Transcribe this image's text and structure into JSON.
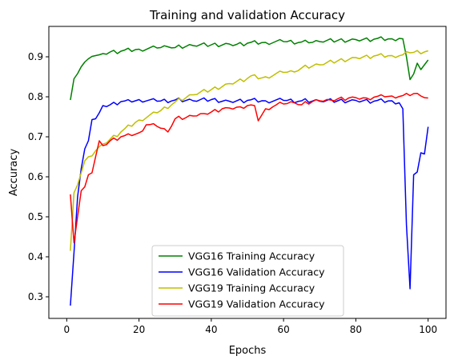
{
  "chart_data": {
    "type": "line",
    "title": "Training and validation Accuracy",
    "xlabel": "Epochs",
    "ylabel": "Accuracy",
    "xlim": [
      -4.95,
      104.95
    ],
    "ylim": [
      0.246,
      0.976
    ],
    "x_ticks": [
      0,
      20,
      40,
      60,
      80,
      100
    ],
    "y_ticks": [
      0.3,
      0.4,
      0.5,
      0.6,
      0.7,
      0.8,
      0.9
    ],
    "grid": false,
    "legend_position": "lower-center",
    "epochs_range": [
      1,
      100
    ],
    "series": [
      {
        "name": "VGG16 Training Accuracy",
        "color": "#008000",
        "anchors": [
          [
            1,
            0.792
          ],
          [
            2,
            0.845
          ],
          [
            3,
            0.858
          ],
          [
            4,
            0.875
          ],
          [
            5,
            0.887
          ],
          [
            6,
            0.895
          ],
          [
            7,
            0.901
          ],
          [
            8,
            0.903
          ],
          [
            9,
            0.905
          ],
          [
            10,
            0.908
          ],
          [
            12,
            0.912
          ],
          [
            15,
            0.914
          ],
          [
            20,
            0.919
          ],
          [
            25,
            0.922
          ],
          [
            28,
            0.925
          ],
          [
            30,
            0.923
          ],
          [
            35,
            0.928
          ],
          [
            40,
            0.93
          ],
          [
            45,
            0.932
          ],
          [
            47,
            0.931
          ],
          [
            50,
            0.934
          ],
          [
            55,
            0.936
          ],
          [
            60,
            0.938
          ],
          [
            65,
            0.937
          ],
          [
            67,
            0.935
          ],
          [
            70,
            0.938
          ],
          [
            75,
            0.941
          ],
          [
            80,
            0.943
          ],
          [
            85,
            0.944
          ],
          [
            90,
            0.945
          ],
          [
            92,
            0.946
          ],
          [
            93,
            0.945
          ],
          [
            94,
            0.9
          ],
          [
            95,
            0.843
          ],
          [
            96,
            0.857
          ],
          [
            97,
            0.884
          ],
          [
            98,
            0.868
          ],
          [
            99,
            0.88
          ],
          [
            100,
            0.892
          ]
        ]
      },
      {
        "name": "VGG16 Validation Accuracy",
        "color": "#0000ff",
        "anchors": [
          [
            1,
            0.278
          ],
          [
            2,
            0.41
          ],
          [
            3,
            0.55
          ],
          [
            4,
            0.62
          ],
          [
            5,
            0.67
          ],
          [
            6,
            0.69
          ],
          [
            7,
            0.743
          ],
          [
            8,
            0.745
          ],
          [
            9,
            0.76
          ],
          [
            10,
            0.778
          ],
          [
            12,
            0.78
          ],
          [
            15,
            0.788
          ],
          [
            18,
            0.787
          ],
          [
            20,
            0.793
          ],
          [
            25,
            0.789
          ],
          [
            30,
            0.792
          ],
          [
            35,
            0.79
          ],
          [
            40,
            0.793
          ],
          [
            45,
            0.789
          ],
          [
            50,
            0.791
          ],
          [
            55,
            0.79
          ],
          [
            60,
            0.791
          ],
          [
            65,
            0.79
          ],
          [
            70,
            0.789
          ],
          [
            75,
            0.79
          ],
          [
            80,
            0.791
          ],
          [
            85,
            0.789
          ],
          [
            90,
            0.79
          ],
          [
            92,
            0.785
          ],
          [
            93,
            0.77
          ],
          [
            94,
            0.48
          ],
          [
            95,
            0.32
          ],
          [
            96,
            0.605
          ],
          [
            97,
            0.612
          ],
          [
            98,
            0.66
          ],
          [
            99,
            0.657
          ],
          [
            100,
            0.725
          ]
        ]
      },
      {
        "name": "VGG19 Training Accuracy",
        "color": "#bfbf00",
        "anchors": [
          [
            1,
            0.415
          ],
          [
            2,
            0.56
          ],
          [
            3,
            0.58
          ],
          [
            4,
            0.61
          ],
          [
            5,
            0.64
          ],
          [
            6,
            0.65
          ],
          [
            8,
            0.665
          ],
          [
            10,
            0.682
          ],
          [
            15,
            0.712
          ],
          [
            20,
            0.742
          ],
          [
            25,
            0.76
          ],
          [
            30,
            0.787
          ],
          [
            35,
            0.805
          ],
          [
            40,
            0.818
          ],
          [
            45,
            0.833
          ],
          [
            50,
            0.846
          ],
          [
            52,
            0.855
          ],
          [
            53,
            0.845
          ],
          [
            55,
            0.85
          ],
          [
            60,
            0.861
          ],
          [
            63,
            0.862
          ],
          [
            65,
            0.872
          ],
          [
            70,
            0.88
          ],
          [
            75,
            0.89
          ],
          [
            80,
            0.898
          ],
          [
            85,
            0.902
          ],
          [
            90,
            0.903
          ],
          [
            93,
            0.905
          ],
          [
            95,
            0.91
          ],
          [
            100,
            0.915
          ]
        ]
      },
      {
        "name": "VGG19 Validation Accuracy",
        "color": "#ff0000",
        "anchors": [
          [
            1,
            0.556
          ],
          [
            2,
            0.435
          ],
          [
            3,
            0.5
          ],
          [
            4,
            0.565
          ],
          [
            5,
            0.575
          ],
          [
            6,
            0.605
          ],
          [
            7,
            0.61
          ],
          [
            8,
            0.65
          ],
          [
            9,
            0.69
          ],
          [
            10,
            0.678
          ],
          [
            12,
            0.69
          ],
          [
            15,
            0.7
          ],
          [
            18,
            0.703
          ],
          [
            20,
            0.71
          ],
          [
            22,
            0.73
          ],
          [
            25,
            0.726
          ],
          [
            28,
            0.712
          ],
          [
            30,
            0.745
          ],
          [
            33,
            0.748
          ],
          [
            35,
            0.752
          ],
          [
            38,
            0.758
          ],
          [
            40,
            0.762
          ],
          [
            43,
            0.77
          ],
          [
            45,
            0.772
          ],
          [
            48,
            0.775
          ],
          [
            50,
            0.778
          ],
          [
            52,
            0.778
          ],
          [
            53,
            0.74
          ],
          [
            55,
            0.77
          ],
          [
            58,
            0.78
          ],
          [
            60,
            0.782
          ],
          [
            63,
            0.785
          ],
          [
            65,
            0.78
          ],
          [
            68,
            0.788
          ],
          [
            70,
            0.79
          ],
          [
            73,
            0.792
          ],
          [
            75,
            0.795
          ],
          [
            78,
            0.797
          ],
          [
            80,
            0.798
          ],
          [
            83,
            0.797
          ],
          [
            85,
            0.799
          ],
          [
            88,
            0.8
          ],
          [
            90,
            0.802
          ],
          [
            93,
            0.803
          ],
          [
            95,
            0.803
          ],
          [
            96,
            0.808
          ],
          [
            98,
            0.802
          ],
          [
            100,
            0.797
          ]
        ]
      }
    ]
  }
}
